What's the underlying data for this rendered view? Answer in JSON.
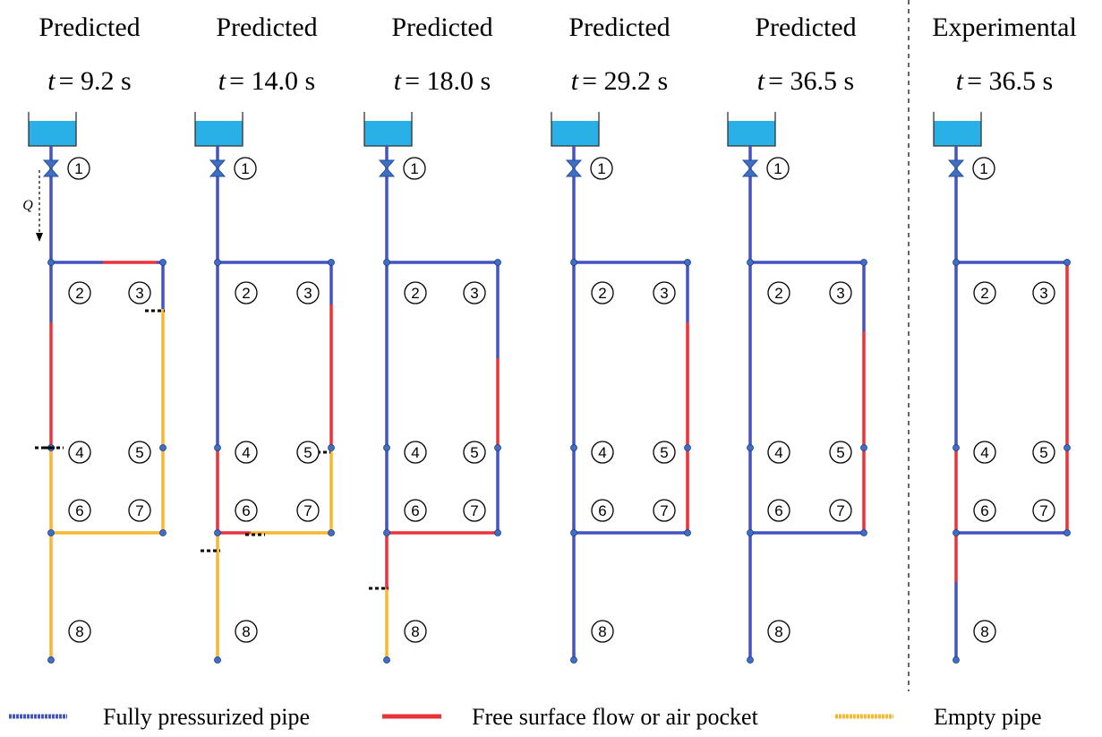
{
  "panels": [
    {
      "title": "Predicted",
      "time": {
        "symbol": "t",
        "text": "= 9.2 s"
      }
    },
    {
      "title": "Predicted",
      "time": {
        "symbol": "t",
        "text": "= 14.0 s"
      }
    },
    {
      "title": "Predicted",
      "time": {
        "symbol": "t",
        "text": "= 18.0 s"
      }
    },
    {
      "title": "Predicted",
      "time": {
        "symbol": "t",
        "text": "= 29.2 s"
      }
    },
    {
      "title": "Predicted",
      "time": {
        "symbol": "t",
        "text": "= 36.5 s"
      }
    },
    {
      "title": "Experimental",
      "time": {
        "symbol": "t",
        "text": "= 36.5 s"
      }
    }
  ],
  "node_labels": [
    "1",
    "2",
    "3",
    "4",
    "5",
    "6",
    "7",
    "8"
  ],
  "flow_label": "Q",
  "legend": [
    "Fully pressurized pipe",
    "Free surface flow or air pocket",
    "Empty pipe"
  ]
}
